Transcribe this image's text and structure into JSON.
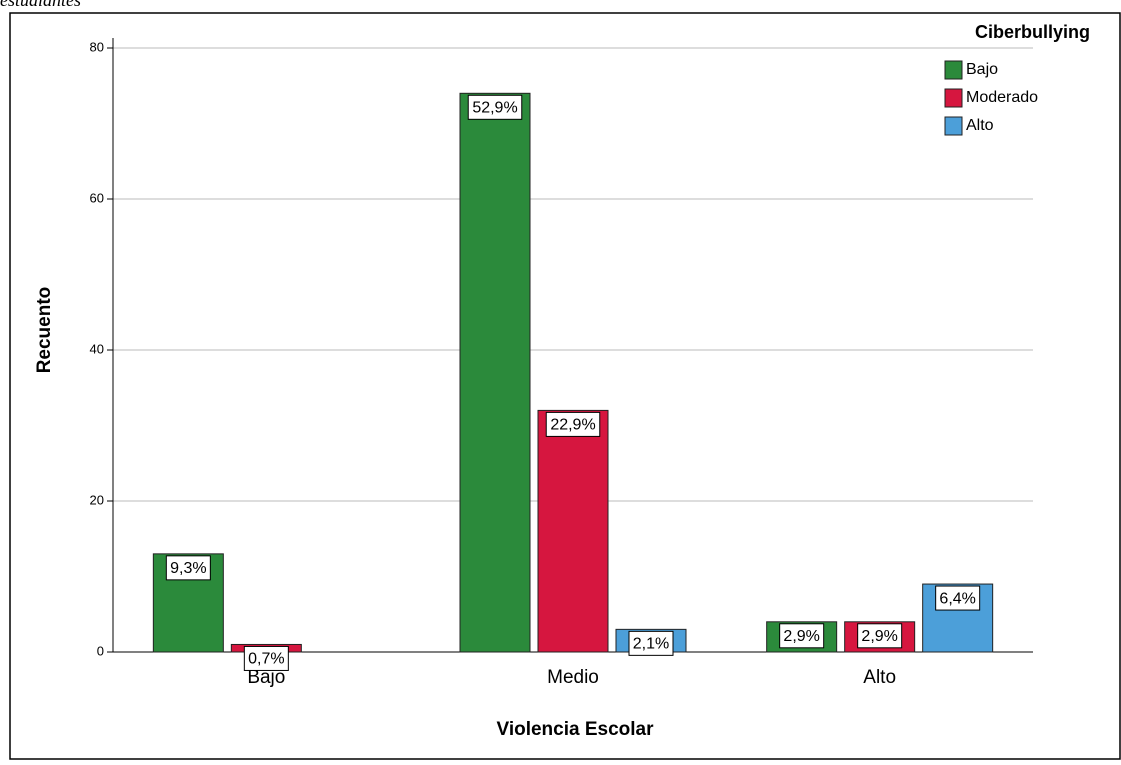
{
  "caption": "estudiantes",
  "chart_data": {
    "type": "bar",
    "x_label": "Violencia Escolar",
    "y_label": "Recuento",
    "legend_title": "Ciberbullying",
    "legend": "top-right",
    "grid": true,
    "categories": [
      "Bajo",
      "Medio",
      "Alto"
    ],
    "ylim": [
      0,
      80
    ],
    "yticks": [
      0,
      20,
      40,
      60,
      80
    ],
    "series": [
      {
        "name": "Bajo",
        "color": "#2b8a3b",
        "values": [
          13,
          74,
          4
        ],
        "labels": [
          "9,3%",
          "52,9%",
          "2,9%"
        ]
      },
      {
        "name": "Moderado",
        "color": "#d6163f",
        "values": [
          1,
          32,
          4
        ],
        "labels": [
          "0,7%",
          "22,9%",
          "2,9%"
        ]
      },
      {
        "name": "Alto",
        "color": "#4c9fd9",
        "values": [
          0,
          3,
          9
        ],
        "labels": [
          null,
          "2,1%",
          "6,4%"
        ]
      }
    ]
  }
}
